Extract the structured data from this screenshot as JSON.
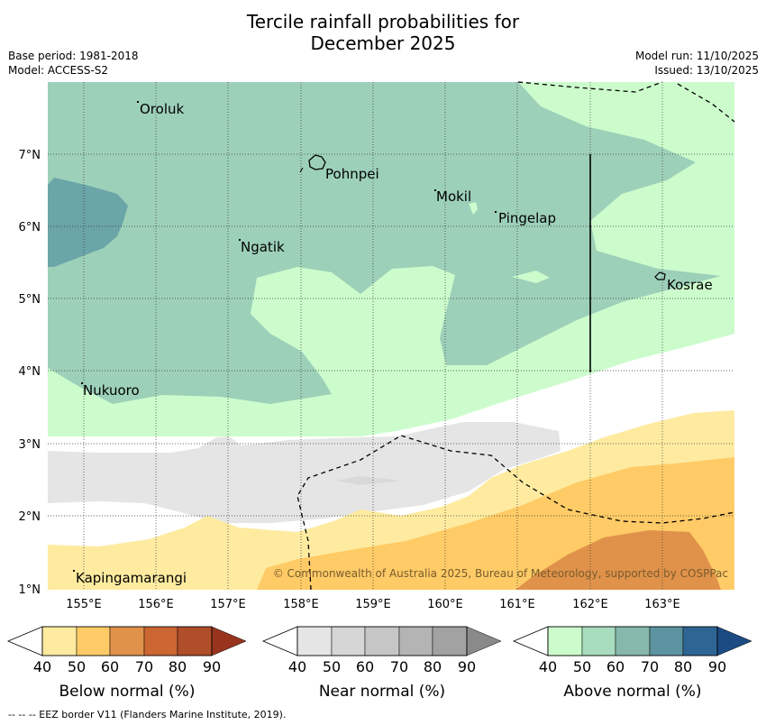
{
  "title": {
    "line1": "Tercile rainfall probabilities for",
    "line2": "December 2025"
  },
  "meta": {
    "base_period": "Base period: 1981-2018",
    "model": "Model: ACCESS-S2",
    "model_run": "Model run: 11/10/2025",
    "issued": "Issued: 13/10/2025"
  },
  "map": {
    "lat_labels": [
      "7°N",
      "6°N",
      "5°N",
      "4°N",
      "3°N",
      "2°N",
      "1°N"
    ],
    "lon_labels": [
      "155°E",
      "156°E",
      "157°E",
      "158°E",
      "159°E",
      "160°E",
      "161°E",
      "162°E",
      "163°E"
    ],
    "places": [
      {
        "name": "Oroluk"
      },
      {
        "name": "Pohnpei"
      },
      {
        "name": "Mokil"
      },
      {
        "name": "Pingelap"
      },
      {
        "name": "Ngatik"
      },
      {
        "name": "Kosrae"
      },
      {
        "name": "Nukuoro"
      },
      {
        "name": "Kapingamarangi"
      }
    ],
    "copyright": "© Commonwealth of Australia 2025, Bureau of Meteorology, supported by COSPPac",
    "colors": {
      "above_50": "#ccfccc",
      "above_60": "#9dd0b9",
      "above_70": "#6aa5a8",
      "near_40": "#e5e5e5",
      "below_40": "#feeba0",
      "below_50": "#fecb66",
      "below_60": "#e0924a"
    }
  },
  "legend": {
    "tick_values": [
      "40",
      "50",
      "60",
      "70",
      "80",
      "90"
    ],
    "below": {
      "title": "Below normal (%)",
      "colors": [
        "#feeba0",
        "#fecb66",
        "#e0924a",
        "#cc6633",
        "#b04e2a",
        "#98341e"
      ]
    },
    "near": {
      "title": "Near normal (%)",
      "colors": [
        "#e5e5e5",
        "#d6d6d6",
        "#c6c6c6",
        "#b4b4b4",
        "#a2a2a2",
        "#8a8a8a"
      ]
    },
    "above": {
      "title": "Above normal (%)",
      "colors": [
        "#ccfccc",
        "#a8dcbe",
        "#86b8ab",
        "#5c93a0",
        "#2f6595",
        "#1c4b83"
      ]
    }
  },
  "footer": {
    "eez": "--  --  -- EEZ border V11 (Flanders Marine Institute, 2019)."
  }
}
